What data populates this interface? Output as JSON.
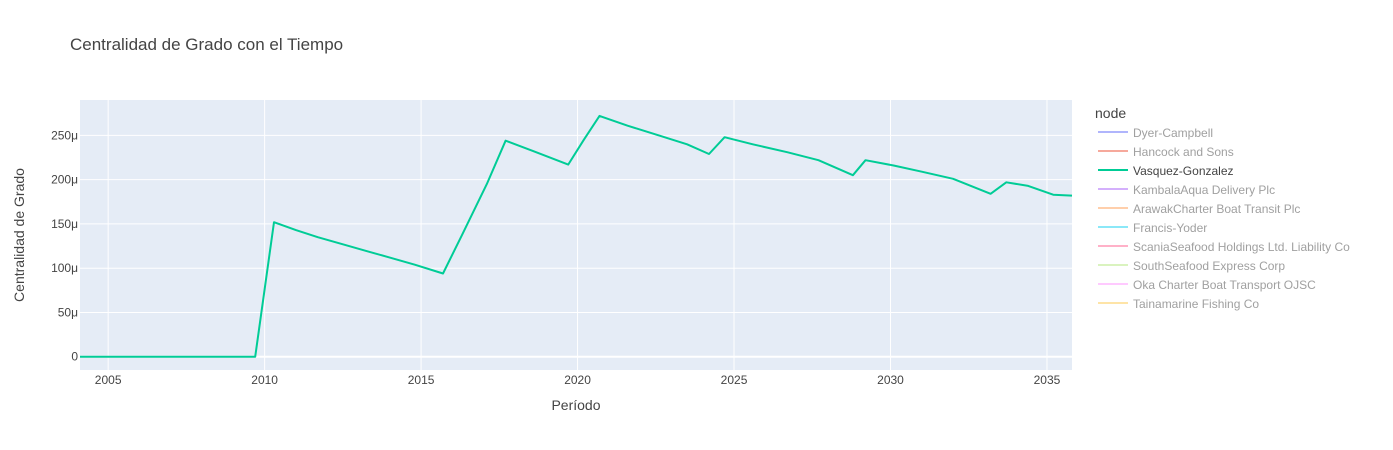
{
  "chart_data": {
    "type": "line",
    "title": "Centralidad de Grado con el Tiempo",
    "xlabel": "Período",
    "ylabel": "Centralidad de Grado",
    "xlim": [
      2004.1,
      2035.8
    ],
    "ylim": [
      -15,
      290
    ],
    "x_ticks": [
      2005,
      2010,
      2015,
      2020,
      2025,
      2030,
      2035
    ],
    "x_tick_labels": [
      "2005",
      "2010",
      "2015",
      "2020",
      "2025",
      "2030",
      "2035"
    ],
    "y_ticks": [
      0,
      50,
      100,
      150,
      200,
      250
    ],
    "y_tick_labels": [
      "0",
      "50μ",
      "100μ",
      "150μ",
      "200μ",
      "250μ"
    ],
    "y_unit_note": "values in μ (1e-6)",
    "grid": true,
    "plot_bg": "#e5ecf6",
    "legend": {
      "title": "node",
      "placement": "right",
      "items": [
        {
          "name": "Dyer-Campbell",
          "color": "#636efa",
          "visible": false
        },
        {
          "name": "Hancock and Sons",
          "color": "#ef553b",
          "visible": false
        },
        {
          "name": "Vasquez-Gonzalez",
          "color": "#00cc96",
          "visible": true
        },
        {
          "name": "KambalaAqua Delivery Plc",
          "color": "#ab63fa",
          "visible": false
        },
        {
          "name": "ArawakCharter Boat Transit Plc",
          "color": "#ffa15a",
          "visible": false
        },
        {
          "name": "Francis-Yoder",
          "color": "#19d3f3",
          "visible": false
        },
        {
          "name": "ScaniaSeafood Holdings Ltd. Liability Co",
          "color": "#ff6692",
          "visible": false
        },
        {
          "name": "SouthSeafood Express Corp",
          "color": "#b6e880",
          "visible": false
        },
        {
          "name": "Oka Charter Boat Transport OJSC",
          "color": "#ff97ff",
          "visible": false
        },
        {
          "name": "Tainamarine Fishing Co",
          "color": "#fecb52",
          "visible": false
        }
      ]
    },
    "series": [
      {
        "name": "Vasquez-Gonzalez",
        "color": "#00cc96",
        "x": [
          2004.1,
          2009.7,
          2010.3,
          2011.0,
          2011.7,
          2012.5,
          2013.3,
          2013.9,
          2014.8,
          2015.7,
          2016.3,
          2017.1,
          2017.7,
          2018.6,
          2019.7,
          2020.2,
          2020.7,
          2021.6,
          2022.6,
          2023.5,
          2024.2,
          2024.7,
          2025.6,
          2026.7,
          2027.7,
          2028.8,
          2029.2,
          2030.1,
          2031.0,
          2032.0,
          2033.2,
          2033.7,
          2034.4,
          2035.2,
          2035.8
        ],
        "y": [
          0,
          0,
          152,
          143,
          135,
          127,
          119,
          113,
          104,
          94,
          137,
          195,
          244,
          232,
          217,
          245,
          272,
          261,
          250,
          240,
          229,
          248,
          240,
          231,
          222,
          205,
          222,
          216,
          209,
          201,
          184,
          197,
          193,
          183,
          182
        ]
      }
    ]
  }
}
